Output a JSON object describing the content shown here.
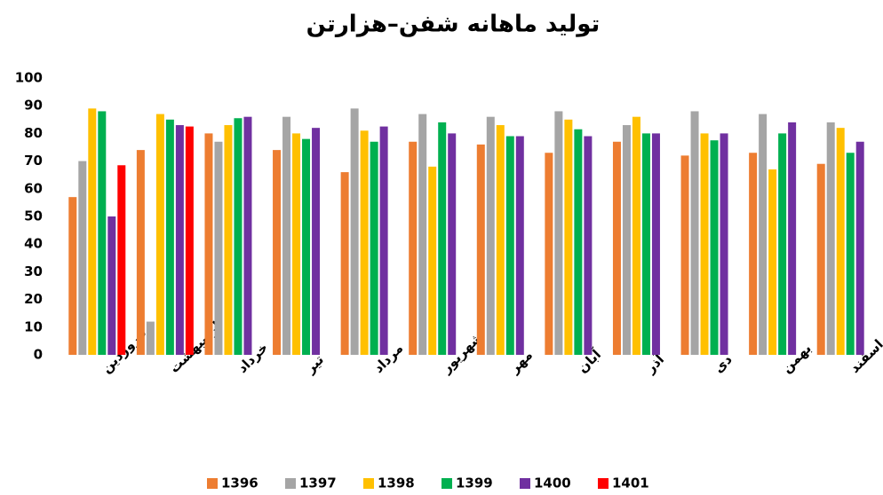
{
  "chart_data": {
    "type": "bar",
    "title": "تولید ماهانه شفن–هزارتن",
    "categories": [
      "فروردین",
      "اردیبهشت",
      "خرداد",
      "تیر",
      "مرداد",
      "شهریور",
      "مهر",
      "آبان",
      "آذر",
      "دی",
      "بهمن",
      "اسفند"
    ],
    "series": [
      {
        "name": "1396",
        "color": "#ed7d31",
        "values": [
          57,
          74,
          80,
          74,
          66,
          77,
          76,
          73,
          77,
          72,
          73,
          69
        ]
      },
      {
        "name": "1397",
        "color": "#a5a5a5",
        "values": [
          70,
          12,
          77,
          86,
          89,
          87,
          86,
          88,
          83,
          88,
          87,
          84
        ]
      },
      {
        "name": "1398",
        "color": "#ffc000",
        "values": [
          89,
          87,
          83,
          80,
          81,
          68,
          83,
          85,
          86,
          80,
          67,
          82
        ]
      },
      {
        "name": "1399",
        "color": "#00b050",
        "values": [
          88,
          85,
          85.5,
          78,
          77,
          84,
          79,
          81.5,
          80,
          77.5,
          80,
          73
        ]
      },
      {
        "name": "1400",
        "color": "#7030a0",
        "values": [
          50,
          83,
          86,
          82,
          82.5,
          80,
          79,
          79,
          80,
          80,
          84,
          77
        ]
      },
      {
        "name": "1401",
        "color": "#ff0000",
        "values": [
          68.5,
          82.5,
          null,
          null,
          null,
          null,
          null,
          null,
          null,
          null,
          null,
          null
        ]
      }
    ],
    "ylim": [
      0,
      100
    ],
    "yticks": [
      0,
      10,
      20,
      30,
      40,
      50,
      60,
      70,
      80,
      90,
      100
    ],
    "grid": false,
    "legend": "bottom"
  }
}
